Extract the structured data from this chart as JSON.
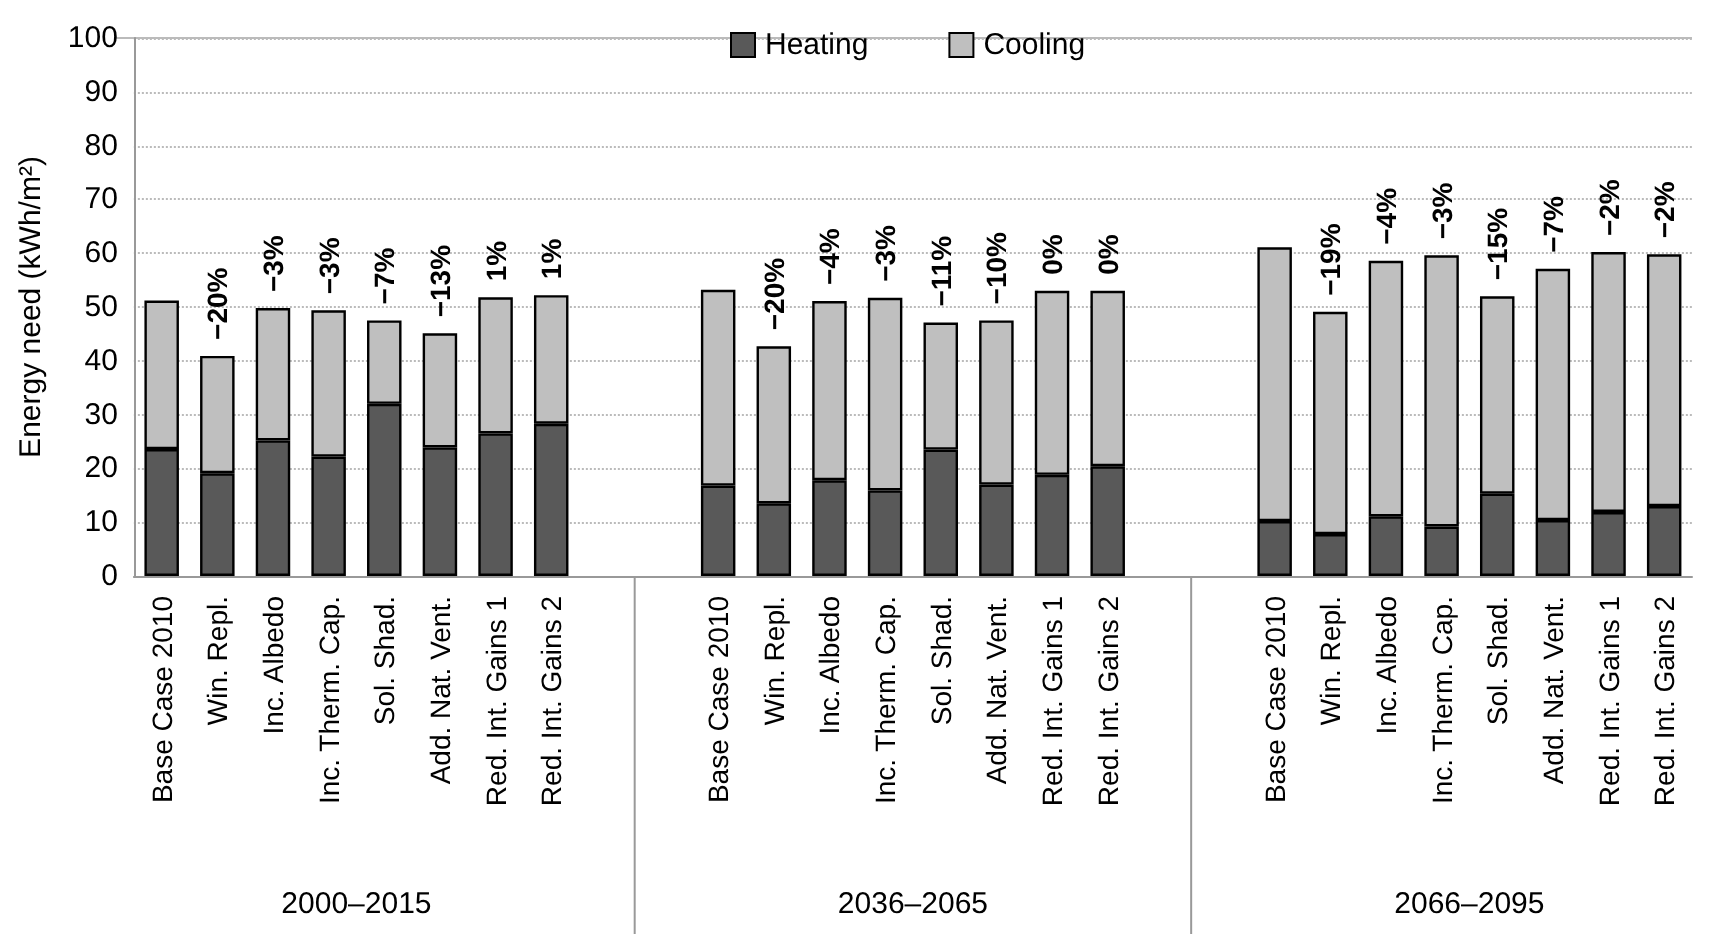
{
  "chart_data": {
    "type": "bar",
    "stacked": true,
    "ylabel": "Energy need (kWh/m²)",
    "categories": [
      "Base Case 2010",
      "Win. Repl.",
      "Inc. Albedo",
      "Inc. Therm. Cap.",
      "Sol. Shad.",
      "Add. Nat. Vent.",
      "Red. Int. Gains 1",
      "Red. Int. Gains 2",
      null,
      null,
      "Base Case 2010",
      "Win. Repl.",
      "Inc. Albedo",
      "Inc. Therm. Cap.",
      "Sol. Shad.",
      "Add. Nat. Vent.",
      "Red. Int. Gains 1",
      "Red. Int. Gains 2",
      null,
      null,
      "Base Case 2010",
      "Win. Repl.",
      "Inc. Albedo",
      "Inc. Therm. Cap.",
      "Sol. Shad.",
      "Add. Nat. Vent.",
      "Red. Int. Gains 1",
      "Red. Int. Gains 2"
    ],
    "series": [
      {
        "name": "Heating",
        "color": "#595959",
        "values": [
          23.6,
          19.1,
          25.2,
          22.2,
          32.0,
          23.9,
          26.5,
          28.3,
          null,
          null,
          16.8,
          13.5,
          17.8,
          15.9,
          23.5,
          17.0,
          18.8,
          20.4,
          null,
          null,
          10.2,
          7.8,
          11.1,
          9.2,
          15.3,
          10.4,
          11.9,
          13.0
        ]
      },
      {
        "name": "Cooling",
        "color": "#bfbfbf",
        "values": [
          27.6,
          21.8,
          24.6,
          27.2,
          15.5,
          21.2,
          25.3,
          23.9,
          null,
          null,
          36.4,
          29.2,
          33.3,
          35.8,
          23.6,
          30.5,
          34.2,
          32.6,
          null,
          null,
          50.9,
          41.3,
          47.5,
          50.4,
          36.7,
          46.7,
          48.3,
          46.8
        ]
      }
    ],
    "annotations": [
      "2000–2015",
      "2036–2065",
      "2066–2095",
      "−20%",
      "−3%",
      "−3%",
      "−7%",
      "−13%",
      "1%",
      "1%",
      "−20%",
      "−4%",
      "−3%",
      "−11%",
      "−10%",
      "0%",
      "0%",
      "−19%",
      "−4%",
      "−3%",
      "−15%",
      "−7%",
      "−2%",
      "−2%"
    ],
    "ylim": [
      0,
      100
    ],
    "yticks": [
      0,
      10,
      20,
      30,
      40,
      50,
      60,
      70,
      80,
      90,
      100
    ],
    "grid": "y",
    "legend": "top"
  }
}
